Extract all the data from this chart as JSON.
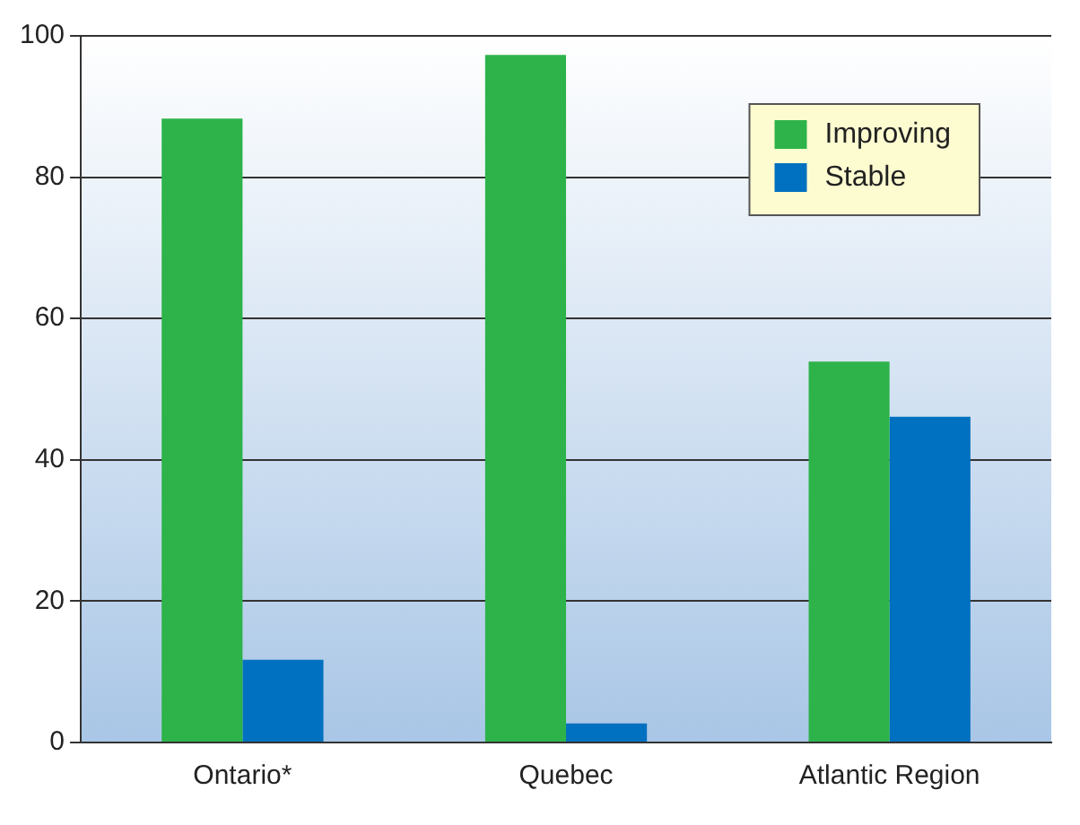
{
  "chart_data": {
    "type": "bar",
    "categories": [
      "Ontario*",
      "Quebec",
      "Atlantic Region"
    ],
    "series": [
      {
        "name": "Improving",
        "color": "#2db34a",
        "values": [
          88.3,
          97.3,
          53.9
        ]
      },
      {
        "name": "Stable",
        "color": "#0070c0",
        "values": [
          11.7,
          2.7,
          46.1
        ]
      }
    ],
    "ylim": [
      0,
      100
    ],
    "yticks": [
      0,
      20,
      40,
      60,
      80,
      100
    ],
    "grid": "y",
    "legend": "top right"
  }
}
